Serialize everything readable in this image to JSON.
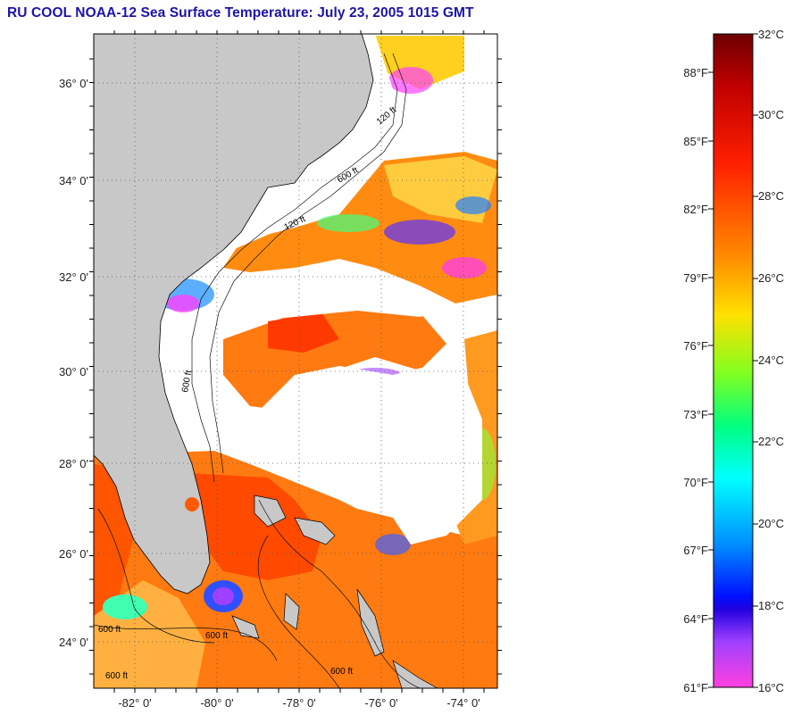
{
  "title": "RU COOL  NOAA-12  Sea Surface Temperature:  July 23, 2005 1015 GMT",
  "map": {
    "lat_labels": [
      "36° 0'",
      "34° 0'",
      "32° 0'",
      "30° 0'",
      "28° 0'",
      "26° 0'",
      "24° 0'"
    ],
    "lon_labels": [
      "-82° 0'",
      "-80° 0'",
      "-78° 0'",
      "-76° 0'",
      "-74° 0'"
    ],
    "contour_labels": [
      "120 ft",
      "600 ft",
      "120 ft",
      "600 ft",
      "600 ft",
      "600 ft",
      "600 ft",
      "600 ft"
    ],
    "land_color": "#c8c8c8",
    "cloud_color": "#ffffff"
  },
  "colorbar": {
    "celsius": [
      "32°C",
      "30°C",
      "28°C",
      "26°C",
      "24°C",
      "22°C",
      "20°C",
      "18°C",
      "16°C"
    ],
    "fahrenheit": [
      "88°F",
      "85°F",
      "82°F",
      "79°F",
      "76°F",
      "73°F",
      "70°F",
      "67°F",
      "64°F",
      "61°F"
    ],
    "colors": [
      "#7a0000",
      "#ff1a00",
      "#ff8c00",
      "#ffff00",
      "#00ff40",
      "#00ffff",
      "#0040ff",
      "#0000ff",
      "#8000ff",
      "#ff40ff"
    ]
  }
}
